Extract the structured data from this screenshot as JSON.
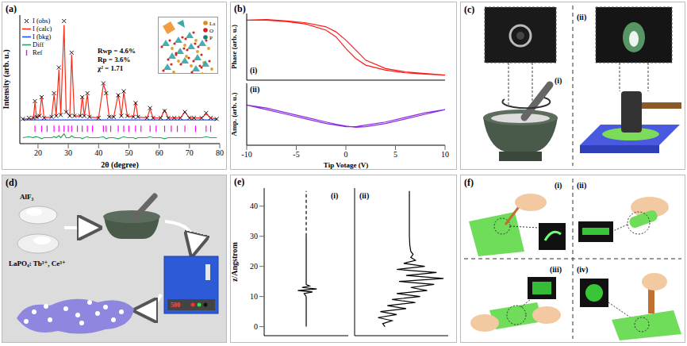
{
  "chart_data": [
    {
      "label": "(a)",
      "type": "line",
      "x_label": "2θ (degree)",
      "y_label": "Intensity (arb. u.)",
      "xlim": [
        14,
        80
      ],
      "xticks": [
        20,
        30,
        40,
        50,
        60,
        70,
        80
      ],
      "ylim": [
        -20,
        110
      ],
      "yticks": [],
      "tick_labels": "x",
      "legend": "upper left",
      "annotations": [
        "Rwp = 4.6%",
        "Rp = 3.6%",
        "χ² = 1.71"
      ],
      "inset_legend": [
        "La",
        "O",
        "P"
      ],
      "series": [
        {
          "name": "I (obs)",
          "type": "scatter",
          "marker": "x",
          "color": "#000000",
          "x": [
            15,
            17,
            18.5,
            19,
            19.5,
            20.5,
            21.2,
            22,
            24.5,
            25.3,
            26,
            26.9,
            27.5,
            28.6,
            29.3,
            30.5,
            31.1,
            32,
            34,
            34.6,
            35.3,
            36.3,
            37,
            40,
            41.6,
            42.5,
            43.5,
            45,
            46.5,
            47.5,
            48.3,
            49.5,
            51.5,
            52.2,
            53,
            56,
            57,
            58,
            60.5,
            61.8,
            63,
            65,
            67,
            68.5,
            70,
            71.5,
            74,
            75.5,
            77,
            79
          ],
          "values": [
            5,
            6,
            6,
            23,
            7,
            8,
            27,
            6,
            7,
            31,
            8,
            57,
            9,
            104,
            12,
            8,
            72,
            8,
            8,
            27,
            8,
            31,
            7,
            6,
            41,
            31,
            7,
            7,
            29,
            8,
            33,
            8,
            7,
            21,
            7,
            6,
            16,
            6,
            6,
            13,
            6,
            6,
            6,
            12,
            6,
            6,
            6,
            11,
            6,
            5
          ]
        },
        {
          "name": "I (calc)",
          "type": "line",
          "color": "#ff2a1a",
          "x": [
            15,
            17,
            18.5,
            19,
            19.5,
            20.5,
            21.2,
            22,
            24.5,
            25.3,
            26,
            26.9,
            27.5,
            28.6,
            29.3,
            30.5,
            31.1,
            32,
            34,
            34.6,
            35.3,
            36.3,
            37,
            40,
            41.6,
            42.5,
            43.5,
            45,
            46.5,
            47.5,
            48.3,
            49.5,
            51.5,
            52.2,
            53,
            56,
            57,
            58,
            60.5,
            61.8,
            63,
            65,
            67,
            68.5,
            70,
            71.5,
            74,
            75.5,
            77,
            79
          ],
          "values": [
            5,
            5,
            6,
            22,
            6,
            8,
            28,
            6,
            7,
            30,
            8,
            55,
            9,
            100,
            12,
            8,
            70,
            8,
            8,
            28,
            8,
            30,
            7,
            6,
            40,
            32,
            7,
            7,
            30,
            8,
            32,
            8,
            7,
            22,
            7,
            6,
            15,
            6,
            6,
            14,
            6,
            6,
            6,
            12,
            6,
            6,
            6,
            10,
            6,
            5
          ]
        },
        {
          "name": "I (bkg)",
          "type": "line",
          "color": "#2050ff",
          "x": [
            15,
            79
          ],
          "values": [
            4,
            4
          ]
        },
        {
          "name": "Diff",
          "type": "line",
          "color": "#2ca060",
          "x": [
            15,
            17,
            18.5,
            19,
            19.5,
            20.5,
            21.2,
            22,
            24.5,
            25.3,
            26,
            26.9,
            27.5,
            28.6,
            29.3,
            30.5,
            31.1,
            32,
            34,
            34.6,
            35.3,
            36.3,
            37,
            40,
            41.6,
            42.5,
            43.5,
            45,
            46.5,
            47.5,
            48.3,
            49.5,
            51.5,
            52.2,
            53,
            56,
            57,
            58,
            60.5,
            61.8,
            63,
            65,
            67,
            68.5,
            70,
            71.5,
            74,
            75.5,
            77,
            79
          ],
          "values": [
            -14,
            -13,
            -14,
            -13,
            -13,
            -14,
            -15,
            -14,
            -14,
            -13,
            -14,
            -12,
            -14,
            -10,
            -14,
            -14,
            -12,
            -14,
            -14,
            -15,
            -14,
            -13,
            -14,
            -14,
            -13,
            -15,
            -14,
            -14,
            -15,
            -14,
            -13,
            -14,
            -14,
            -15,
            -14,
            -14,
            -13,
            -14,
            -14,
            -15,
            -14,
            -14,
            -14,
            -14,
            -14,
            -14,
            -14,
            -13,
            -14,
            -14
          ]
        },
        {
          "name": "Ref",
          "type": "scatter",
          "marker": "|",
          "color": "#ff00ff",
          "x": [
            19,
            21.2,
            23,
            25.3,
            26.9,
            28.6,
            30,
            31.1,
            33,
            34.6,
            36.3,
            38,
            41.6,
            42.5,
            44,
            46.5,
            48.3,
            50,
            52.2,
            54,
            57,
            59,
            61.8,
            64,
            66,
            68.5,
            72,
            75.5,
            77
          ],
          "values": [
            -5,
            -5,
            -5,
            -5,
            -5,
            -5,
            -5,
            -5,
            -5,
            -5,
            -5,
            -5,
            -5,
            -5,
            -5,
            -5,
            -5,
            -5,
            -5,
            -5,
            -5,
            -5,
            -5,
            -5,
            -5,
            -5,
            -5,
            -5,
            -5
          ]
        }
      ]
    },
    {
      "label": "(b)",
      "sublabel": "(i)",
      "type": "line",
      "y_label": "Phase (arb. u.)",
      "xlim": [
        -10,
        10
      ],
      "ylim": [
        -1,
        1
      ],
      "tick_labels": false,
      "series": [
        {
          "color": "#ff1a1a",
          "x": [
            -10,
            -8,
            -6,
            -4,
            -2,
            -1,
            0,
            1,
            2,
            4,
            6,
            8,
            10,
            8,
            6,
            4,
            2,
            1,
            0,
            -1,
            -2,
            -4,
            -6,
            -8,
            -10
          ],
          "values": [
            0.8,
            0.82,
            0.78,
            0.72,
            0.6,
            0.45,
            0.2,
            -0.1,
            -0.4,
            -0.65,
            -0.75,
            -0.8,
            -0.85,
            -0.82,
            -0.78,
            -0.7,
            -0.55,
            -0.35,
            -0.05,
            0.3,
            0.5,
            0.68,
            0.76,
            0.8,
            0.8
          ]
        }
      ]
    },
    {
      "sublabel": "(ii)",
      "type": "line",
      "x_label": "Tip Votage (V)",
      "y_label": "Amp. (arb. u.)",
      "xlim": [
        -10,
        10
      ],
      "xticks": [
        -10,
        -5,
        0,
        5,
        10
      ],
      "ylim": [
        -1,
        1
      ],
      "tick_labels": "x",
      "series": [
        {
          "color": "#8a2be2",
          "x": [
            -10,
            -8,
            -6,
            -4,
            -2,
            -1,
            0,
            1,
            2,
            4,
            6,
            8,
            10,
            8,
            6,
            4,
            2,
            1,
            0,
            -1,
            -2,
            -4,
            -6,
            -8,
            -10
          ],
          "values": [
            0.3,
            0.2,
            0.05,
            -0.1,
            -0.25,
            -0.32,
            -0.38,
            -0.42,
            -0.4,
            -0.3,
            -0.15,
            0,
            0.15,
            0.05,
            -0.1,
            -0.25,
            -0.35,
            -0.4,
            -0.4,
            -0.35,
            -0.3,
            -0.15,
            0,
            0.15,
            0.3
          ]
        }
      ]
    },
    {
      "label": "(e)",
      "sublabel": "(i)",
      "type": "line",
      "y_label": "z/Angstrom",
      "xlim": [
        -1,
        1
      ],
      "ylim": [
        -3,
        46
      ],
      "yticks": [
        0,
        10,
        20,
        30,
        40
      ],
      "tick_labels": "y",
      "series": [
        {
          "color": "#000000",
          "line_style": "solid",
          "x": [
            0,
            0,
            0,
            0,
            0,
            0,
            -0.05,
            0.15,
            -0.2,
            0.25,
            -0.1,
            0.08,
            0,
            0,
            0,
            0,
            0
          ],
          "values": [
            0,
            2,
            4,
            6,
            8,
            10,
            11,
            11.5,
            12,
            12.5,
            13,
            13.5,
            14,
            16,
            20,
            25,
            30
          ]
        },
        {
          "color": "#000000",
          "line_style": "dashed",
          "x": [
            0,
            0
          ],
          "values": [
            30,
            45
          ]
        }
      ]
    },
    {
      "sublabel": "(ii)",
      "type": "line",
      "xlim": [
        -1,
        1
      ],
      "ylim": [
        -3,
        46
      ],
      "tick_labels": false,
      "series": [
        {
          "color": "#000000",
          "line_style": "solid",
          "x": [
            -0.35,
            -0.4,
            -0.2,
            -0.5,
            -0.1,
            -0.45,
            0.1,
            -0.3,
            0.3,
            -0.2,
            0.4,
            -0.1,
            0.55,
            0.2,
            0.7,
            -0.05,
            0.9,
            0.1,
            0.75,
            -0.1,
            0.5,
            0.05,
            0.3,
            0.2,
            0.25,
            0.2,
            0.18,
            0.17,
            0.17,
            0.17,
            0.17
          ],
          "values": [
            0,
            1,
            2,
            3,
            4,
            5,
            6,
            7,
            8,
            9,
            10,
            11,
            12,
            13,
            14,
            15,
            16,
            17,
            18,
            19,
            20,
            21,
            22,
            23,
            24,
            25,
            27,
            30,
            35,
            40,
            45
          ]
        }
      ]
    }
  ],
  "diagrams": {
    "c": {
      "label": "(c)",
      "parts": [
        "(i)",
        "(ii)"
      ]
    },
    "d": {
      "label": "(d)",
      "texts": [
        "AlF₃",
        "LaPO₄: Tb³⁺, Ce³⁺"
      ],
      "furnace_display": "500"
    },
    "f": {
      "label": "(f)",
      "parts": [
        "(i)",
        "(ii)",
        "(iii)",
        "(iv)"
      ]
    }
  }
}
